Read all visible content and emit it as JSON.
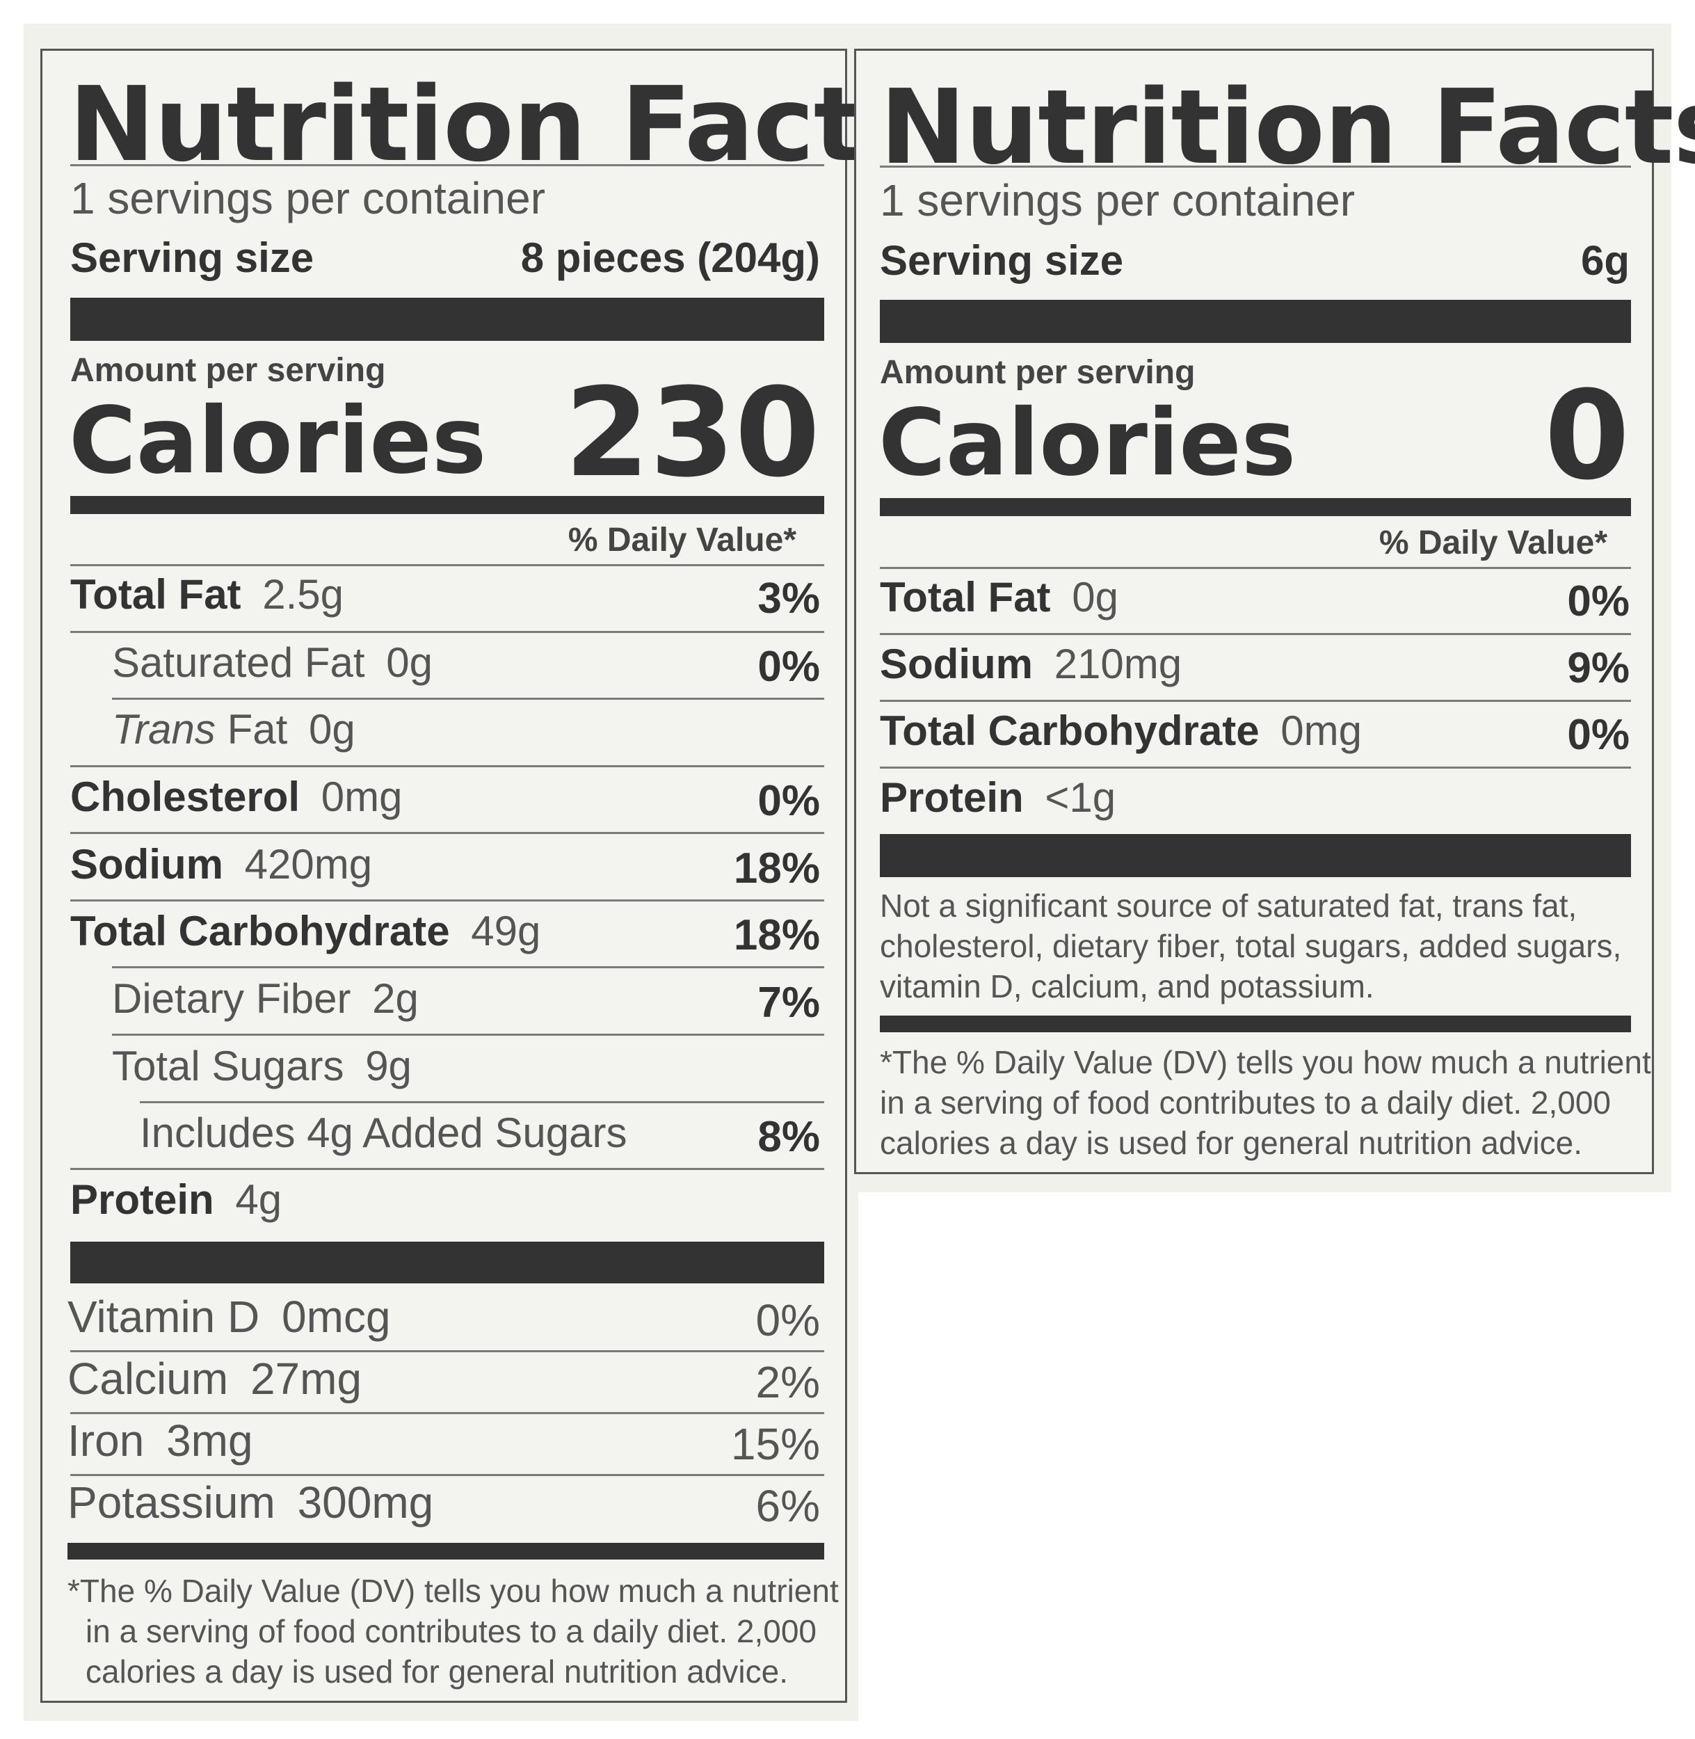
{
  "labels": [
    {
      "title": "Nutrition Facts",
      "servings_per_container": "1 servings per container",
      "serving_size_label": "Serving size",
      "serving_size_value": "8 pieces (204g)",
      "amount_per_serving": "Amount per serving",
      "calories_label": "Calories",
      "calories_value": "230",
      "daily_value_header": "% Daily Value*",
      "nutrients": [
        {
          "name": "Total Fat",
          "amount": "2.5g",
          "dv": "3%"
        },
        {
          "name": "Saturated Fat",
          "amount": "0g",
          "dv": "0%"
        },
        {
          "name_italic": "Trans",
          "name": " Fat",
          "amount": "0g",
          "dv": ""
        },
        {
          "name": "Cholesterol",
          "amount": "0mg",
          "dv": "0%"
        },
        {
          "name": "Sodium",
          "amount": "420mg",
          "dv": "18%"
        },
        {
          "name": "Total Carbohydrate",
          "amount": "49g",
          "dv": "18%"
        },
        {
          "name": "Dietary Fiber",
          "amount": "2g",
          "dv": "7%"
        },
        {
          "name": "Total Sugars",
          "amount": "9g",
          "dv": ""
        },
        {
          "name": "Includes 4g Added Sugars",
          "amount": "",
          "dv": "8%"
        },
        {
          "name": "Protein",
          "amount": "4g",
          "dv": ""
        }
      ],
      "vitamins": [
        {
          "name": "Vitamin D",
          "amount": "0mcg",
          "dv": "0%"
        },
        {
          "name": "Calcium",
          "amount": "27mg",
          "dv": "2%"
        },
        {
          "name": "Iron",
          "amount": "3mg",
          "dv": "15%"
        },
        {
          "name": "Potassium",
          "amount": "300mg",
          "dv": "6%"
        }
      ],
      "footnote_1": "*The % Daily Value (DV) tells you how much a nutrient",
      "footnote_2": "in a serving of food contributes to a daily diet. 2,000",
      "footnote_3": "calories a day is used for general nutrition advice."
    },
    {
      "title": "Nutrition Facts",
      "servings_per_container": "1 servings per container",
      "serving_size_label": "Serving size",
      "serving_size_value": "6g",
      "amount_per_serving": "Amount per serving",
      "calories_label": "Calories",
      "calories_value": "0",
      "daily_value_header": "% Daily Value*",
      "nutrients": [
        {
          "name": "Total Fat",
          "amount": "0g",
          "dv": "0%"
        },
        {
          "name": "Sodium",
          "amount": "210mg",
          "dv": "9%"
        },
        {
          "name": "Total Carbohydrate",
          "amount": "0mg",
          "dv": "0%"
        },
        {
          "name": "Protein",
          "amount": "<1g",
          "dv": ""
        }
      ],
      "not_significant_1": "Not a significant source of saturated fat, trans fat,",
      "not_significant_2": "cholesterol, dietary fiber, total sugars, added sugars,",
      "not_significant_3": "vitamin D, calcium, and potassium.",
      "footnote_1": "*The % Daily Value (DV) tells you how much a nutrient",
      "footnote_2": "in a serving of food contributes to a daily diet. 2,000",
      "footnote_3": "calories a day is used for general nutrition advice."
    }
  ]
}
